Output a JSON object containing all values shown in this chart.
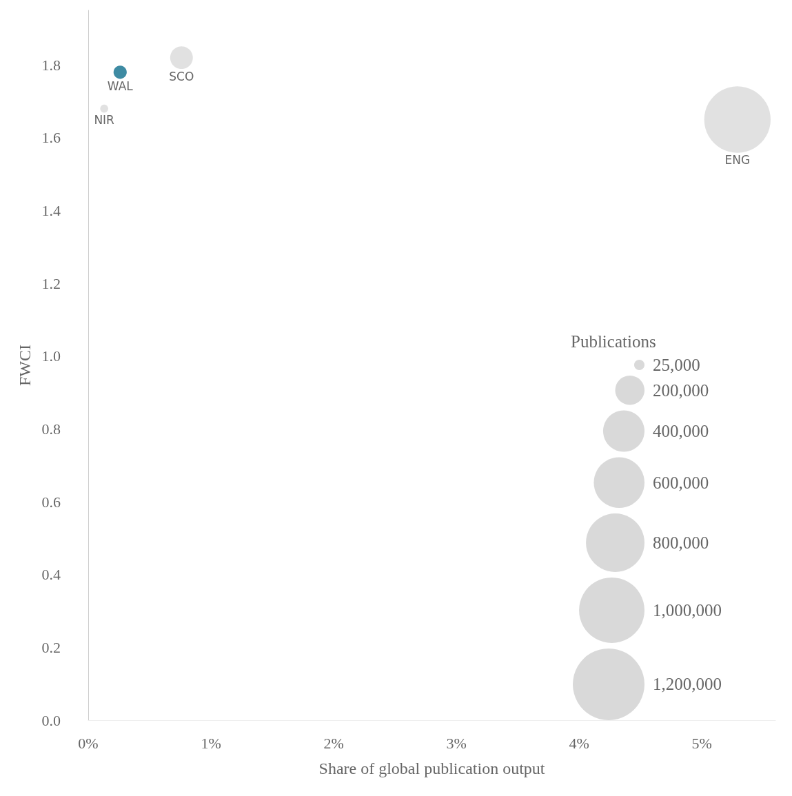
{
  "chart_data": {
    "type": "bubble",
    "xlabel": "Share of global publication output",
    "ylabel": "FWCI",
    "legend_title": "Publications",
    "x": [
      0.26,
      0.76,
      0.13,
      5.29
    ],
    "values": [
      1.78,
      1.82,
      1.68,
      1.65
    ],
    "sizes": [
      41000,
      120000,
      15000,
      1030000
    ],
    "colors": [
      "#0e6e8c",
      "#d9d9d9",
      "#d9d9d9",
      "#d9d9d9"
    ],
    "size_legend": [
      {
        "value": 25000,
        "label": "25,000"
      },
      {
        "value": 200000,
        "label": "200,000"
      },
      {
        "value": 400000,
        "label": "400,000"
      },
      {
        "value": 600000,
        "label": "600,000"
      },
      {
        "value": 800000,
        "label": "800,000"
      },
      {
        "value": 1000000,
        "label": "1,000,000"
      },
      {
        "value": 1200000,
        "label": "1,200,000"
      }
    ],
    "xlim": [
      0,
      5.6
    ],
    "xticks": [
      {
        "value": 0,
        "label": "0%"
      },
      {
        "value": 1,
        "label": "1%"
      },
      {
        "value": 2,
        "label": "2%"
      },
      {
        "value": 3,
        "label": "3%"
      },
      {
        "value": 4,
        "label": "4%"
      },
      {
        "value": 5,
        "label": "5%"
      }
    ],
    "ylim": [
      0,
      1.95
    ],
    "yticks": [
      {
        "value": 0,
        "label": "0.0"
      },
      {
        "value": 0.2,
        "label": "0.2"
      },
      {
        "value": 0.4,
        "label": "0.4"
      },
      {
        "value": 0.6,
        "label": "0.6"
      },
      {
        "value": 0.8,
        "label": "0.8"
      },
      {
        "value": 1,
        "label": "1.0"
      },
      {
        "value": 1.2,
        "label": "1.2"
      },
      {
        "value": 1.4,
        "label": "1.4"
      },
      {
        "value": 1.6,
        "label": "1.6"
      },
      {
        "value": 1.8,
        "label": "1.8"
      }
    ],
    "grid": false,
    "annotations": [
      {
        "text": "WAL",
        "x": 0.26,
        "y": 1.78
      },
      {
        "text": "SCO",
        "x": 0.76,
        "y": 1.82
      },
      {
        "text": "NIR",
        "x": 0.13,
        "y": 1.68
      },
      {
        "text": "ENG",
        "x": 5.29,
        "y": 1.65
      }
    ]
  }
}
